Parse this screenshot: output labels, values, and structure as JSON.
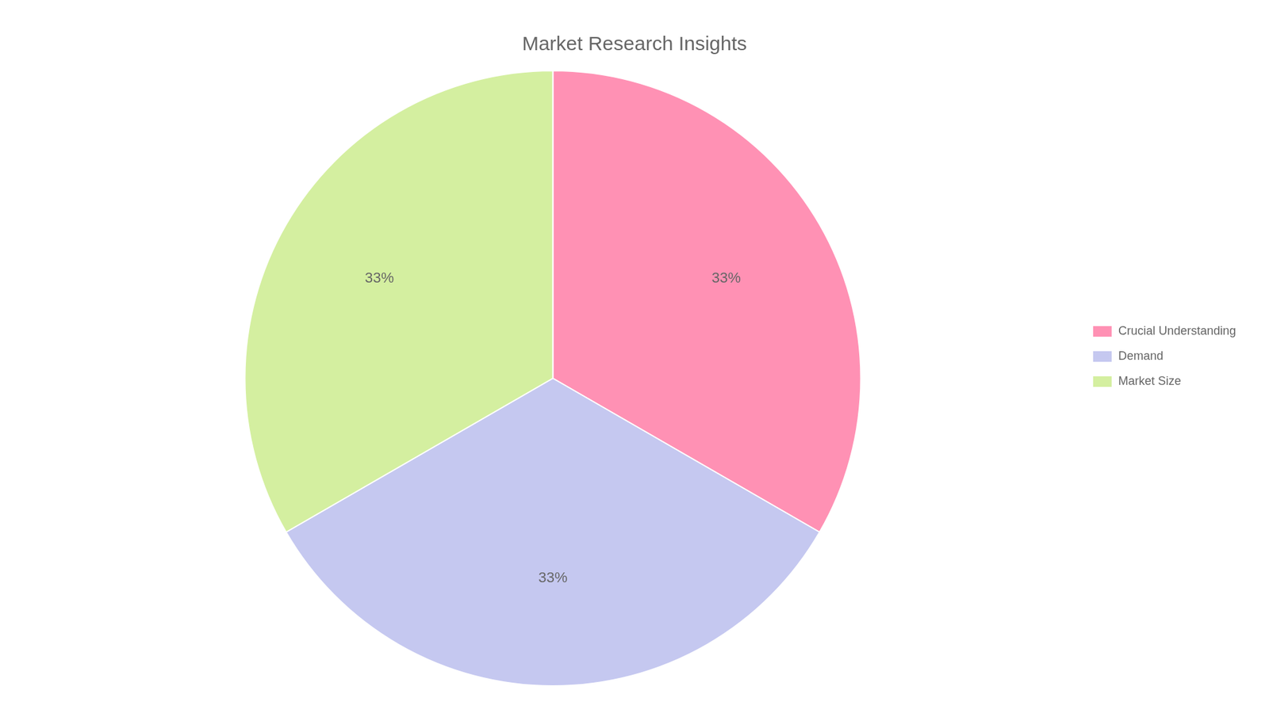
{
  "chart_data": {
    "type": "pie",
    "title": "Market Research Insights",
    "categories": [
      "Crucial Understanding",
      "Demand",
      "Market Size"
    ],
    "values": [
      33,
      33,
      33
    ],
    "value_labels": [
      "33%",
      "33%",
      "33%"
    ],
    "data_labels": true,
    "colors": [
      "#FF91B4",
      "#C5C8F0",
      "#D4EFA0"
    ],
    "legend": "right"
  }
}
